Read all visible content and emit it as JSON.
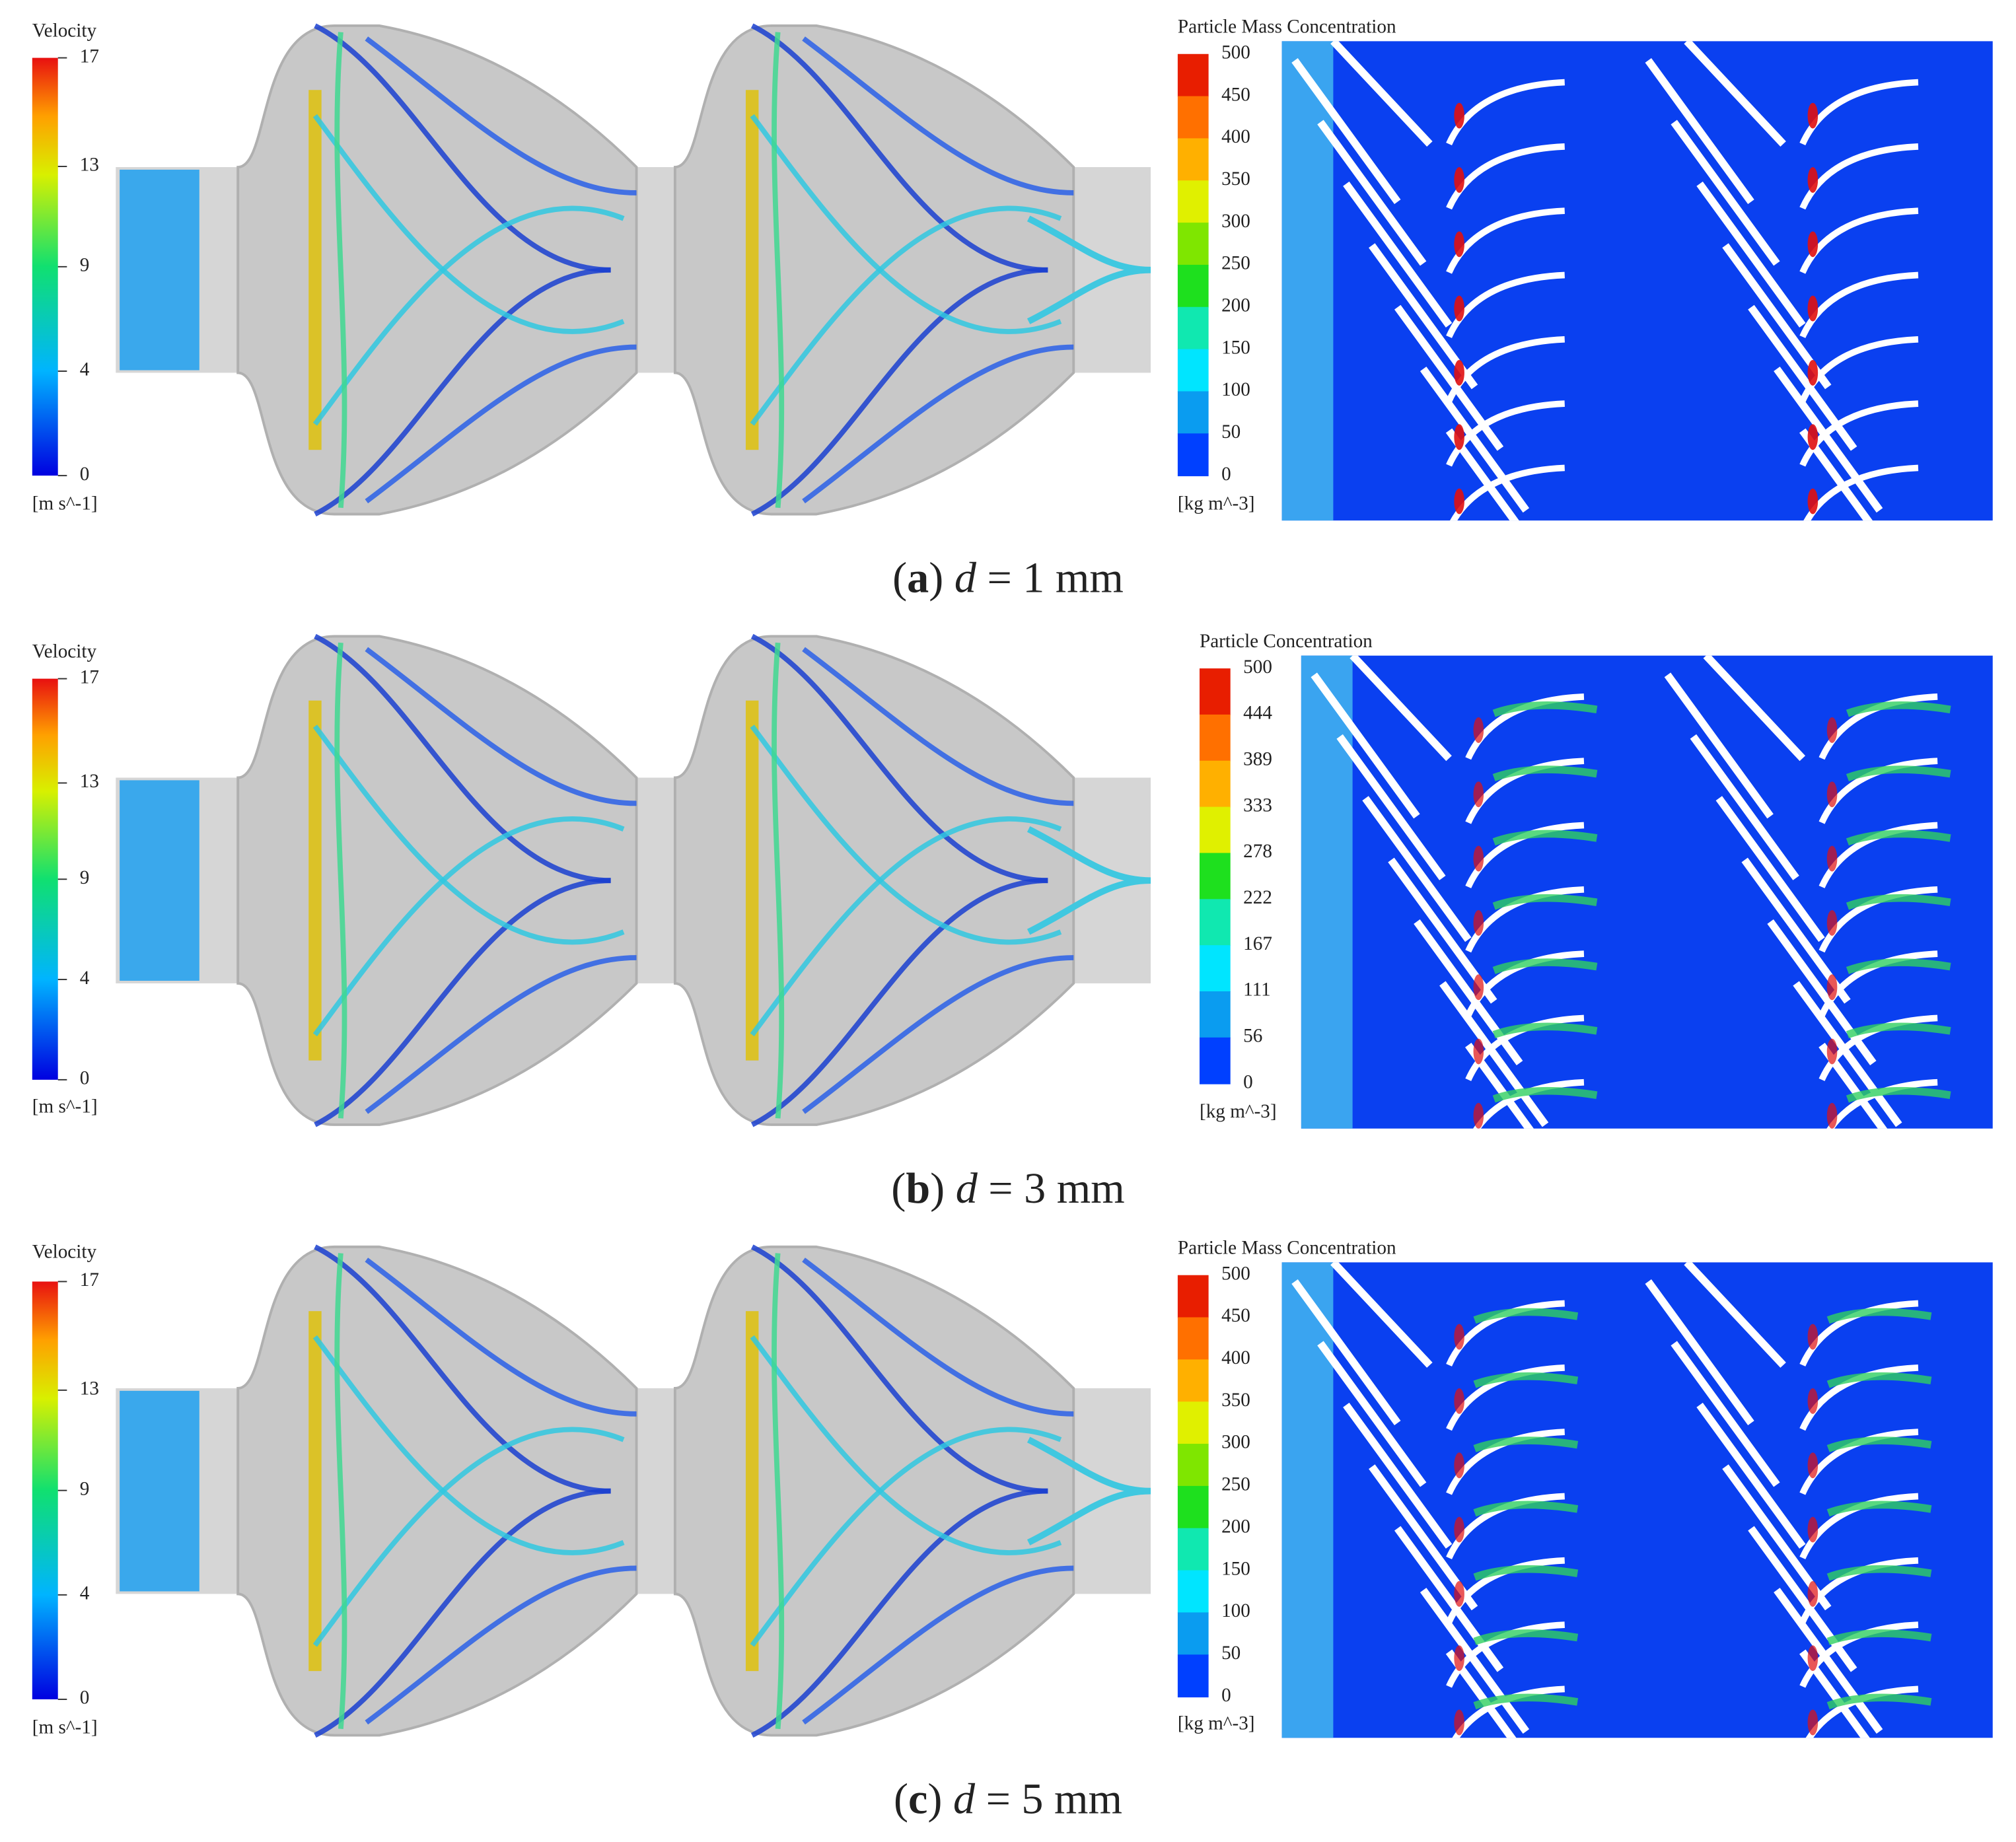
{
  "panels": [
    {
      "velocity": {
        "title": "Velocity",
        "ticks": [
          "17",
          "13",
          "9",
          "4",
          "0"
        ],
        "unit": "[m s^-1]"
      },
      "concentration": {
        "title": "Particle Mass Concentration",
        "ticks": [
          "500",
          "450",
          "400",
          "350",
          "300",
          "250",
          "200",
          "150",
          "100",
          "50",
          "0"
        ],
        "unit": "[kg m^-3]"
      },
      "caption": [
        "(",
        "a",
        ") ",
        "d",
        " = 1 mm"
      ]
    },
    {
      "velocity": {
        "title": "Velocity",
        "ticks": [
          "17",
          "13",
          "9",
          "4",
          "0"
        ],
        "unit": "[m s^-1]"
      },
      "concentration": {
        "title": "Particle Concentration",
        "ticks": [
          "500",
          "444",
          "389",
          "333",
          "278",
          "222",
          "167",
          "111",
          "56",
          "0"
        ],
        "unit": "[kg m^-3]"
      },
      "caption": [
        "(",
        "b",
        ") ",
        "d",
        " = 3 mm"
      ]
    },
    {
      "velocity": {
        "title": "Velocity",
        "ticks": [
          "17",
          "13",
          "9",
          "4",
          "0"
        ],
        "unit": "[m s^-1]"
      },
      "concentration": {
        "title": "Particle Mass Concentration",
        "ticks": [
          "500",
          "450",
          "400",
          "350",
          "300",
          "250",
          "200",
          "150",
          "100",
          "50",
          "0"
        ],
        "unit": "[kg m^-3]"
      },
      "caption": [
        "(",
        "c",
        ") ",
        "d",
        " = 5 mm"
      ]
    }
  ]
}
